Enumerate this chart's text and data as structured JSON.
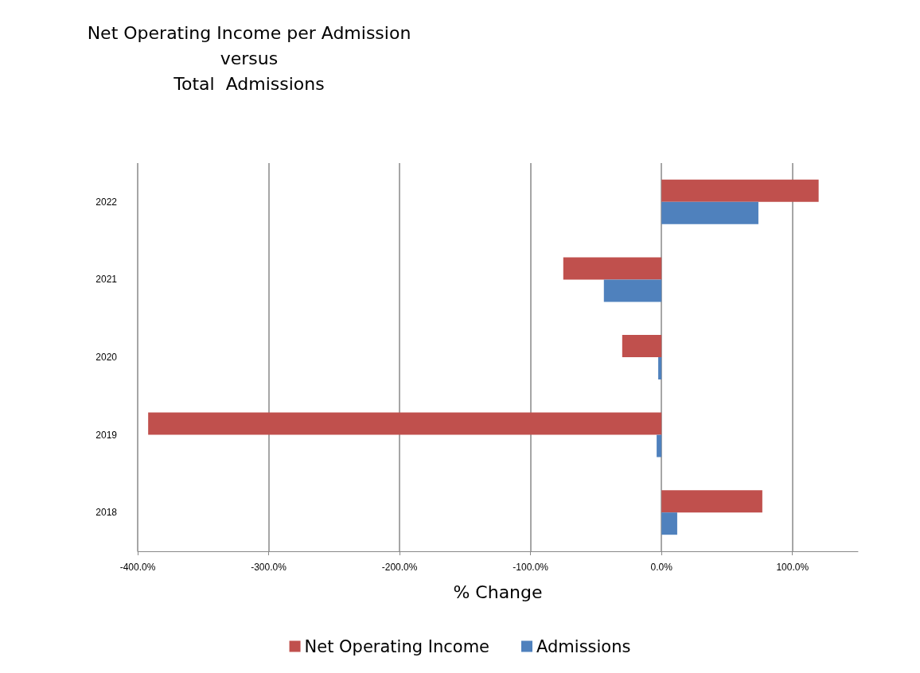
{
  "chart_data": {
    "type": "bar",
    "orientation": "horizontal",
    "title": "Net Operating Income per Admission\nversus\nTotal  Admissions",
    "xlabel": "% Change",
    "categories": [
      "2022",
      "2021",
      "2020",
      "2019",
      "2018"
    ],
    "series": [
      {
        "name": "Net Operating Income",
        "color": "#c0504d",
        "values": [
          120,
          -75,
          -30,
          -392,
          77
        ]
      },
      {
        "name": "Admissions",
        "color": "#4f81bd",
        "values": [
          74,
          -44,
          -2.5,
          -3.7,
          12
        ]
      }
    ],
    "xlim": [
      -400,
      150
    ],
    "xticks": [
      {
        "value": -400,
        "label": "-400.0%"
      },
      {
        "value": -300,
        "label": "-300.0%"
      },
      {
        "value": -200,
        "label": "-200.0%"
      },
      {
        "value": -100,
        "label": "-100.0%"
      },
      {
        "value": 0,
        "label": "0.0%"
      },
      {
        "value": 100,
        "label": "100.0%"
      }
    ],
    "grid": "x",
    "legend": "bottom"
  }
}
